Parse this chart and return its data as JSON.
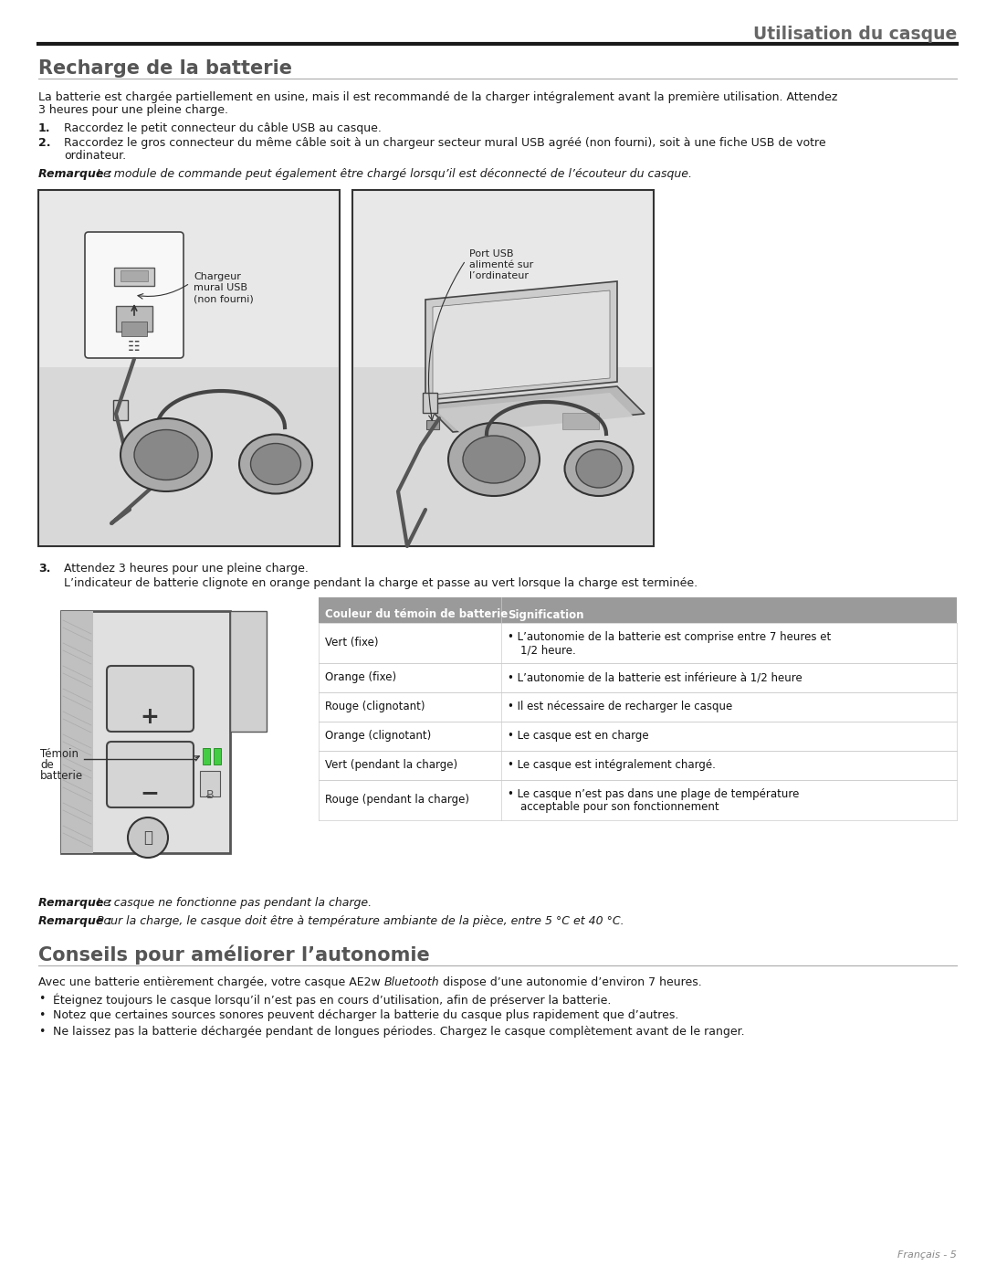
{
  "page_title": "Utilisation du casque",
  "section1_title": "Recharge de la batterie",
  "intro_line1": "La batterie est chargée partiellement en usine, mais il est recommandé de la charger intégralement avant la première utilisation. Attendez",
  "intro_line2": "3 heures pour une pleine charge.",
  "step1_num": "1.",
  "step1_text": "Raccordez le petit connecteur du câble USB au casque.",
  "step2_num": "2.",
  "step2_line1": "Raccordez le gros connecteur du même câble soit à un chargeur secteur mural USB agréé (non fourni), soit à une fiche USB de votre",
  "step2_line2": "ordinateur.",
  "rq1_bold": "Remarque :",
  "rq1_rest": " Le module de commande peut également être chargé lorsqu’il est déconnecté de l’écouteur du casque.",
  "img1_lbl1": "Chargeur\nmural USB\n(non fourni)",
  "img1_lbl2": "Port USB\nalimenté sur\nl’ordinateur",
  "step3_num": "3.",
  "step3_text": "Attendez 3 heures pour une pleine charge.",
  "step3_sub": "L’indicateur de batterie clignote en orange pendant la charge et passe au vert lorsque la charge est terminée.",
  "tbl_h1": "Couleur du témoin de batterie",
  "tbl_h2": "Signification",
  "tbl_rows": [
    [
      "Vert (fixe)",
      "• L’autonomie de la batterie est comprise entre 7 heures et",
      "1/2 heure.",
      true
    ],
    [
      "Orange (fixe)",
      "• L’autonomie de la batterie est inférieure à 1/2 heure",
      "",
      false
    ],
    [
      "Rouge (clignotant)",
      "• Il est nécessaire de recharger le casque",
      "",
      false
    ],
    [
      "Orange (clignotant)",
      "• Le casque est en charge",
      "",
      false
    ],
    [
      "Vert (pendant la charge)",
      "• Le casque est intégralement chargé.",
      "",
      false
    ],
    [
      "Rouge (pendant la charge)",
      "• Le casque n’est pas dans une plage de température",
      "acceptable pour son fonctionnement",
      true
    ]
  ],
  "img2_lbl": "Témoin\nde\nbatterie",
  "rq2_bold": "Remarque :",
  "rq2_rest": " Le casque ne fonctionne pas pendant la charge.",
  "rq3_bold": "Remarque :",
  "rq3_rest": " Pour la charge, le casque doit être à température ambiante de la pièce, entre 5 °C et 40 °C.",
  "s2_title": "Conseils pour améliorer l’autonomie",
  "s2_intro_pre": "Avec une batterie entièrement chargée, votre casque AE2w ",
  "s2_intro_italic": "Bluetooth",
  "s2_intro_post": " dispose d’une autonomie d’environ 7 heures.",
  "bullets": [
    "Éteignez toujours le casque lorsqu’il n’est pas en cours d’utilisation, afin de préserver la batterie.",
    "Notez que certaines sources sonores peuvent décharger la batterie du casque plus rapidement que d’autres.",
    "Ne laissez pas la batterie déchargée pendant de longues périodes. Chargez le casque complètement avant de le ranger."
  ],
  "footer": "Français - 5"
}
